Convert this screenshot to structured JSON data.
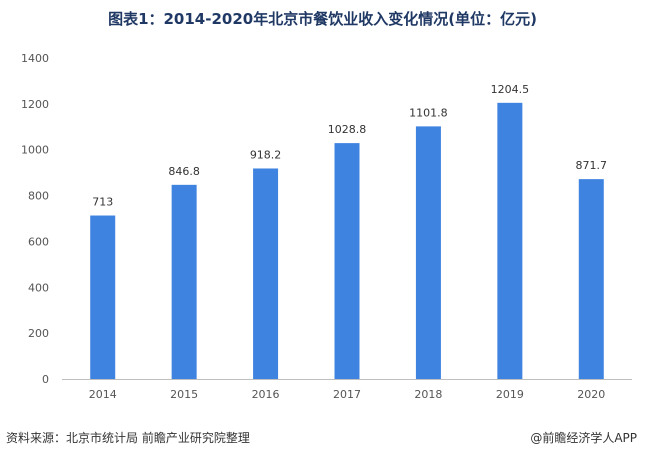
{
  "title": "图表1：2014-2020年北京市餐饮业收入变化情况(单位：亿元)",
  "footer": {
    "source": "资料来源：北京市统计局 前瞻产业研究院整理",
    "brand": "@前瞻经济学人APP"
  },
  "colors": {
    "bar": "#3f83e0",
    "axis": "#bfbfbf",
    "title": "#1f3864"
  },
  "chart_data": {
    "type": "bar",
    "categories": [
      "2014",
      "2015",
      "2016",
      "2017",
      "2018",
      "2019",
      "2020"
    ],
    "values": [
      713,
      846.8,
      918.2,
      1028.8,
      1101.8,
      1204.5,
      871.7
    ],
    "value_labels": [
      "713",
      "846.8",
      "918.2",
      "1028.8",
      "1101.8",
      "1204.5",
      "871.7"
    ],
    "y_ticks": [
      0,
      200,
      400,
      600,
      800,
      1000,
      1200,
      1400
    ],
    "ylim": [
      0,
      1400
    ],
    "grid": false,
    "legend": "none"
  }
}
